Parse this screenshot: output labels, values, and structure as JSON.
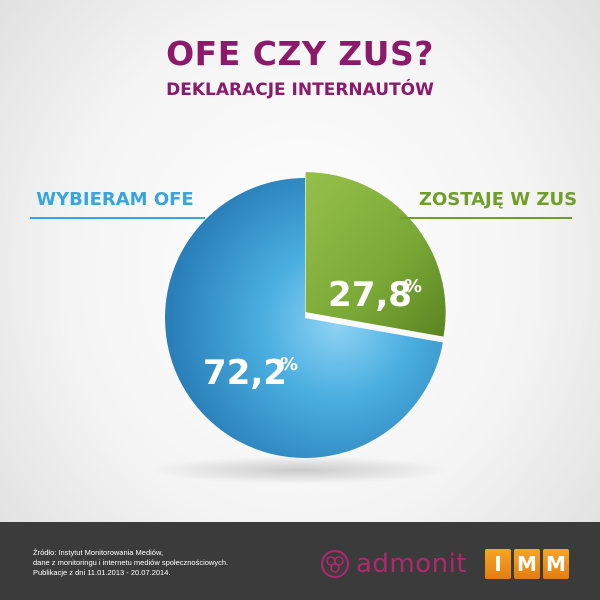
{
  "header": {
    "title": "OFE CZY ZUS?",
    "subtitle": "DEKLARACJE INTERNAUTÓW"
  },
  "chart_data": {
    "type": "pie",
    "title": "OFE CZY ZUS?",
    "subtitle": "DEKLARACJE INTERNAUTÓW",
    "slices": [
      {
        "label": "WYBIERAM OFE",
        "value": 72.2,
        "value_label": "72,2%",
        "color": "#4aa7d8"
      },
      {
        "label": "ZOSTAJĘ W ZUS",
        "value": 27.8,
        "value_label": "27,8%",
        "color": "#7ba83a"
      }
    ]
  },
  "colors": {
    "title": "#8c1a6a",
    "ofe": "#3aa5dc",
    "zus": "#6f9e2a",
    "footer_bg": "#3b3b3b",
    "admonit": "#b0286e",
    "imm": "#f39a1e"
  },
  "footer": {
    "source_lines": [
      "Źródło: Instytut Monitorowania Mediów,",
      "dane z monitoringu i internetu mediów społecznościowych.",
      "Publikacje z dni 11.01.2013 - 20.07.2014."
    ],
    "admonit_logo": "admonit",
    "admonit_icon": "admonit-flower-icon",
    "imm_letters": [
      "I",
      "M",
      "M"
    ]
  }
}
